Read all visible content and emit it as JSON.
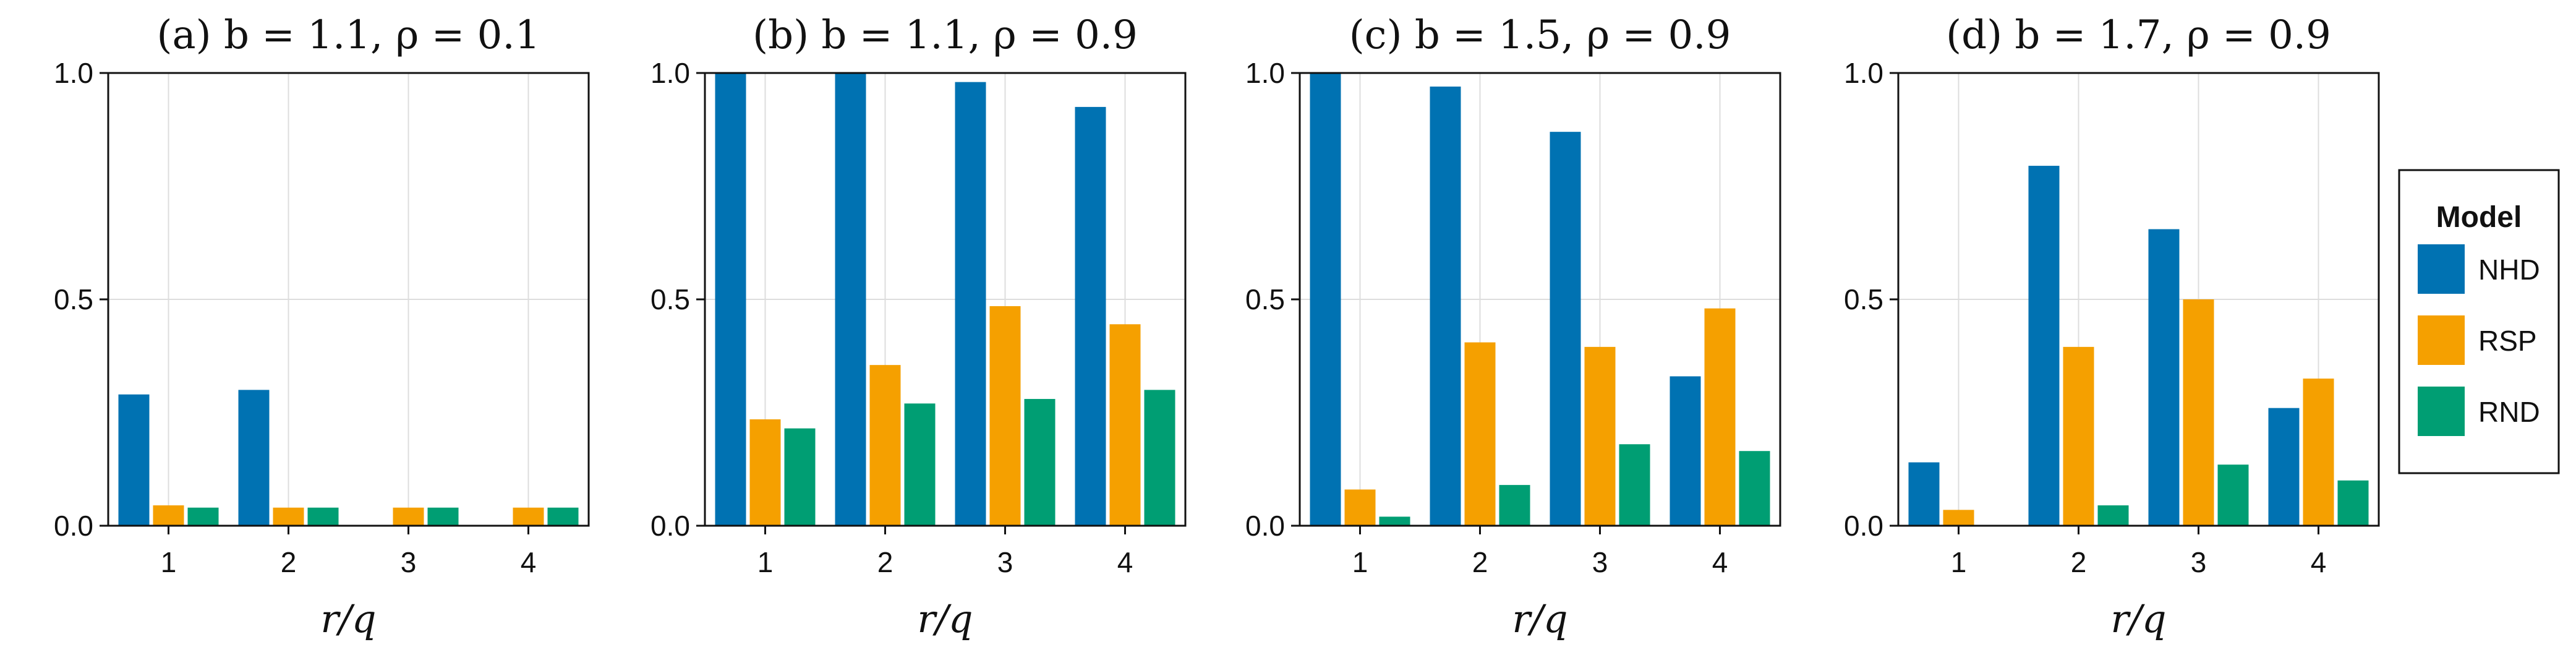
{
  "chart_data": [
    {
      "type": "bar",
      "title": "(a) b = 1.1, ρ = 0.1",
      "xlabel": "r/q",
      "ylabel": "",
      "ylim": [
        0,
        1
      ],
      "yticks": [
        "0.0",
        "0.5",
        "1.0"
      ],
      "grid": true,
      "categories": [
        "1",
        "2",
        "3",
        "4"
      ],
      "series": [
        {
          "name": "NHD",
          "values": [
            0.29,
            0.3,
            0.0,
            0.0
          ]
        },
        {
          "name": "RSP",
          "values": [
            0.045,
            0.04,
            0.04,
            0.04
          ]
        },
        {
          "name": "RND",
          "values": [
            0.04,
            0.04,
            0.04,
            0.04
          ]
        }
      ]
    },
    {
      "type": "bar",
      "title": "(b) b = 1.1, ρ = 0.9",
      "xlabel": "r/q",
      "ylabel": "",
      "ylim": [
        0,
        1
      ],
      "yticks": [
        "0.0",
        "0.5",
        "1.0"
      ],
      "grid": true,
      "categories": [
        "1",
        "2",
        "3",
        "4"
      ],
      "series": [
        {
          "name": "NHD",
          "values": [
            1.0,
            1.0,
            0.98,
            0.925
          ]
        },
        {
          "name": "RSP",
          "values": [
            0.235,
            0.355,
            0.485,
            0.445
          ]
        },
        {
          "name": "RND",
          "values": [
            0.215,
            0.27,
            0.28,
            0.3
          ]
        }
      ]
    },
    {
      "type": "bar",
      "title": "(c) b = 1.5, ρ = 0.9",
      "xlabel": "r/q",
      "ylabel": "",
      "ylim": [
        0,
        1
      ],
      "yticks": [
        "0.0",
        "0.5",
        "1.0"
      ],
      "grid": true,
      "categories": [
        "1",
        "2",
        "3",
        "4"
      ],
      "series": [
        {
          "name": "NHD",
          "values": [
            1.0,
            0.97,
            0.87,
            0.33
          ]
        },
        {
          "name": "RSP",
          "values": [
            0.08,
            0.405,
            0.395,
            0.48
          ]
        },
        {
          "name": "RND",
          "values": [
            0.02,
            0.09,
            0.18,
            0.165
          ]
        }
      ]
    },
    {
      "type": "bar",
      "title": "(d) b = 1.7, ρ = 0.9",
      "xlabel": "r/q",
      "ylabel": "",
      "ylim": [
        0,
        1
      ],
      "yticks": [
        "0.0",
        "0.5",
        "1.0"
      ],
      "grid": true,
      "categories": [
        "1",
        "2",
        "3",
        "4"
      ],
      "series": [
        {
          "name": "NHD",
          "values": [
            0.14,
            0.795,
            0.655,
            0.26
          ]
        },
        {
          "name": "RSP",
          "values": [
            0.035,
            0.395,
            0.5,
            0.325
          ]
        },
        {
          "name": "RND",
          "values": [
            0.0,
            0.045,
            0.135,
            0.1
          ]
        }
      ]
    }
  ],
  "legend": {
    "title": "Model",
    "placement": "right",
    "items": [
      {
        "label": "NHD",
        "color": "#0072B2"
      },
      {
        "label": "RSP",
        "color": "#F5A000"
      },
      {
        "label": "RND",
        "color": "#009E73"
      }
    ]
  }
}
